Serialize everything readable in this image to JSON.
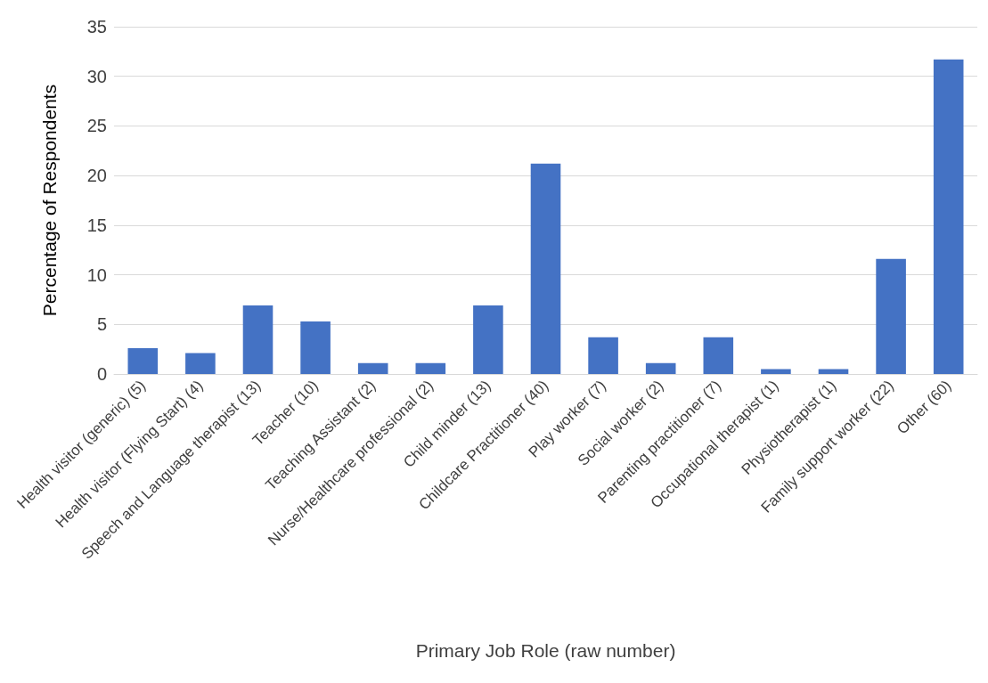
{
  "chart_data": {
    "type": "bar",
    "xlabel": "Primary Job Role (raw number)",
    "ylabel": "Percentage of Respondents",
    "categories": [
      "Health visitor (generic) (5)",
      "Health visitor (Flying Start) (4)",
      "Speech and Language therapist (13)",
      "Teacher (10)",
      "Teaching Assistant (2)",
      "Nurse/Healthcare professional (2)",
      "Child minder (13)",
      "Childcare Practitioner (40)",
      "Play worker (7)",
      "Social worker (2)",
      "Parenting practitioner (7)",
      "Occupational therapist (1)",
      "Physiotherapist (1)",
      "Family support worker (22)",
      "Other (60)"
    ],
    "values": [
      2.6,
      2.1,
      6.9,
      5.3,
      1.1,
      1.1,
      6.9,
      21.2,
      3.7,
      1.1,
      3.7,
      0.5,
      0.5,
      11.6,
      31.7
    ],
    "color": "#4472c4",
    "ylim": [
      0,
      35
    ],
    "yticks": [
      0,
      5,
      10,
      15,
      20,
      25,
      30,
      35
    ],
    "grid": "y"
  }
}
